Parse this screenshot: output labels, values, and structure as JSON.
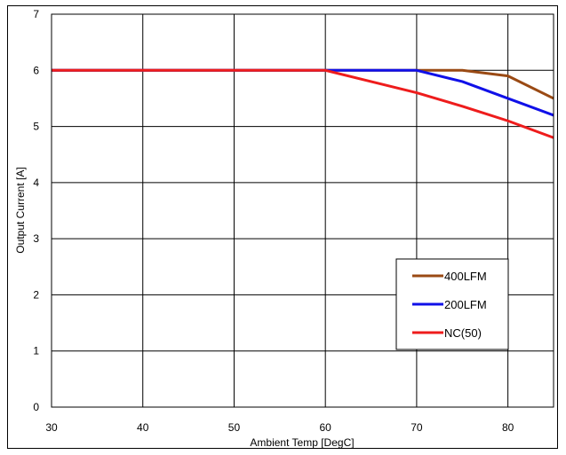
{
  "chart_data": {
    "type": "line",
    "xlabel": "Ambient Temp [DegC]",
    "ylabel": "Output Current [A]",
    "xlim": [
      30,
      85
    ],
    "ylim": [
      0,
      7
    ],
    "x_ticks": [
      30,
      40,
      50,
      60,
      70,
      80
    ],
    "y_ticks": [
      0,
      1,
      2,
      3,
      4,
      5,
      6,
      7
    ],
    "grid": true,
    "legend_position": "right",
    "series": [
      {
        "name": "400LFM",
        "color": "#9a4a14",
        "x": [
          30,
          70,
          75,
          80,
          85
        ],
        "y": [
          6.0,
          6.0,
          6.0,
          5.9,
          5.5
        ]
      },
      {
        "name": "200LFM",
        "color": "#1010e8",
        "x": [
          30,
          70,
          75,
          80,
          85
        ],
        "y": [
          6.0,
          6.0,
          5.8,
          5.5,
          5.2
        ]
      },
      {
        "name": "NC(50)",
        "color": "#ee1c1c",
        "x": [
          30,
          60,
          65,
          70,
          75,
          80,
          85
        ],
        "y": [
          6.0,
          6.0,
          5.8,
          5.6,
          5.36,
          5.1,
          4.8
        ]
      }
    ]
  }
}
